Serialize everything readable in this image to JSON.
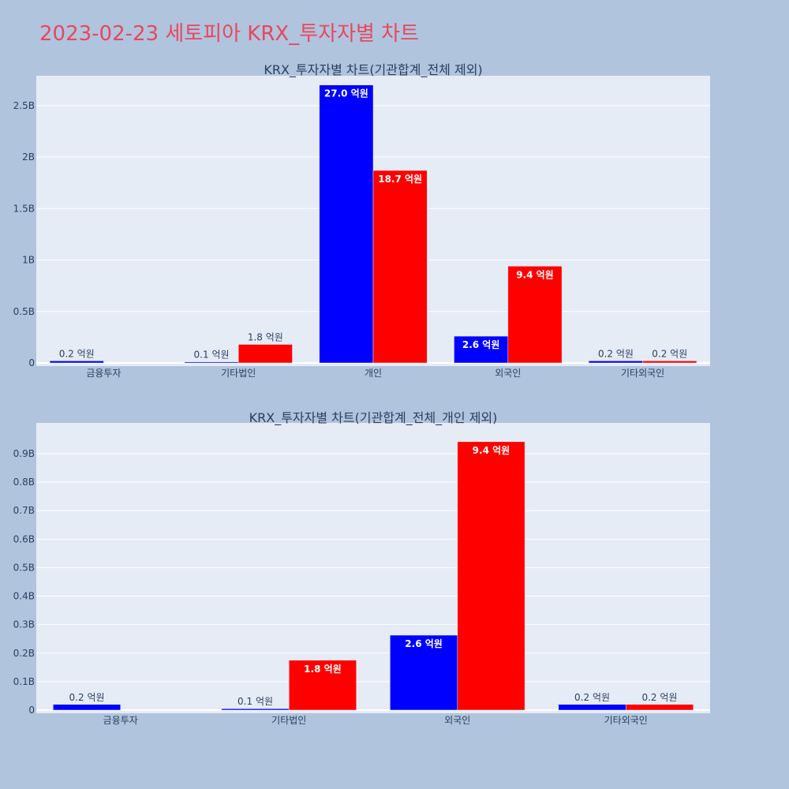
{
  "title": "2023-02-23 세토피아 KRX_투자자별 차트",
  "colors": {
    "buy": "#0000ff",
    "sell": "#ff0000",
    "plot_bg": "#e5ecf6",
    "page_bg": "#b0c4de",
    "title": "#e8475f"
  },
  "chart_data": [
    {
      "type": "bar",
      "title": "KRX_투자자별 차트(기관합계_전체 제외)",
      "categories": [
        "금융투자",
        "기타법인",
        "개인",
        "외국인",
        "기타외국인"
      ],
      "series": [
        {
          "values": [
            20000000,
            10000000,
            2700000000,
            260000000,
            20000000
          ],
          "labels": [
            "0.2 억원",
            "0.1 억원",
            "27.0 억원",
            "2.6 억원",
            "0.2 억원"
          ]
        },
        {
          "values": [
            0,
            180000000,
            1870000000,
            940000000,
            20000000
          ],
          "labels": [
            "",
            "1.8 억원",
            "18.7 억원",
            "9.4 억원",
            "0.2 억원"
          ]
        }
      ],
      "yticks": [
        0,
        500000000,
        1000000000,
        1500000000,
        2000000000,
        2500000000
      ],
      "ytick_labels": [
        "0",
        "0.5B",
        "1B",
        "1.5B",
        "2B",
        "2.5B"
      ],
      "ylim": [
        0,
        2790000000
      ]
    },
    {
      "type": "bar",
      "title": "KRX_투자자별 차트(기관합계_전체_개인 제외)",
      "categories": [
        "금융투자",
        "기타법인",
        "외국인",
        "기타외국인"
      ],
      "series": [
        {
          "values": [
            20000000,
            5000000,
            263000000,
            20000000
          ],
          "labels": [
            "0.2 억원",
            "0.1 억원",
            "2.6 억원",
            "0.2 억원"
          ]
        },
        {
          "values": [
            0,
            175000000,
            942000000,
            20000000
          ],
          "labels": [
            "",
            "1.8 억원",
            "9.4 억원",
            "0.2 억원"
          ]
        }
      ],
      "yticks": [
        0,
        100000000,
        200000000,
        300000000,
        400000000,
        500000000,
        600000000,
        700000000,
        800000000,
        900000000
      ],
      "ytick_labels": [
        "0",
        "0.1B",
        "0.2B",
        "0.3B",
        "0.4B",
        "0.5B",
        "0.6B",
        "0.7B",
        "0.8B",
        "0.9B"
      ],
      "ylim": [
        0,
        1008000000
      ]
    }
  ]
}
